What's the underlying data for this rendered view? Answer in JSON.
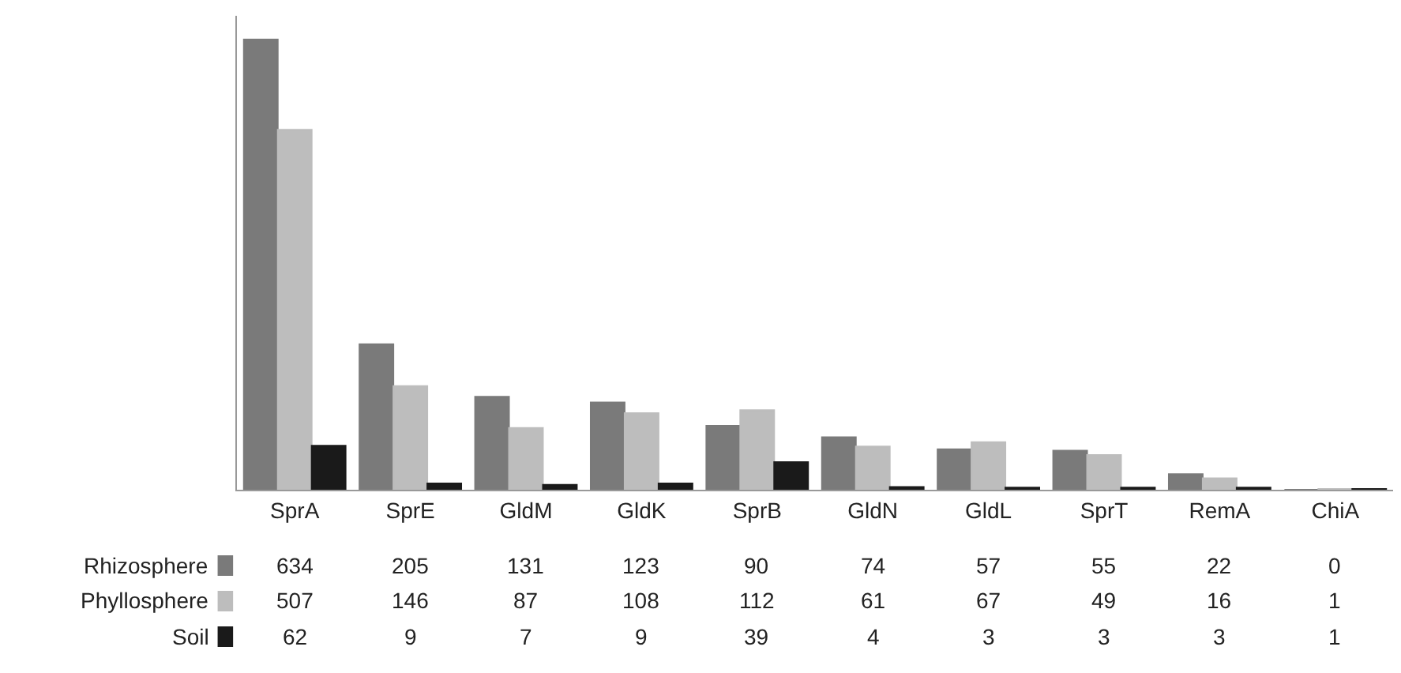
{
  "chart_data": {
    "type": "bar",
    "categories": [
      "SprA",
      "SprE",
      "GldM",
      "GldK",
      "SprB",
      "GldN",
      "GldL",
      "SprT",
      "RemA",
      "ChiA"
    ],
    "series": [
      {
        "name": "Rhizosphere",
        "color": "#7a7a7a",
        "values": [
          634,
          205,
          131,
          123,
          90,
          74,
          57,
          55,
          22,
          0
        ]
      },
      {
        "name": "Phyllosphere",
        "color": "#bdbdbd",
        "values": [
          507,
          146,
          87,
          108,
          112,
          61,
          67,
          49,
          16,
          1
        ]
      },
      {
        "name": "Soil",
        "color": "#1a1a1a",
        "values": [
          62,
          9,
          7,
          9,
          39,
          4,
          3,
          3,
          3,
          1
        ]
      }
    ],
    "legend": "bottom left",
    "data_labels": true
  }
}
